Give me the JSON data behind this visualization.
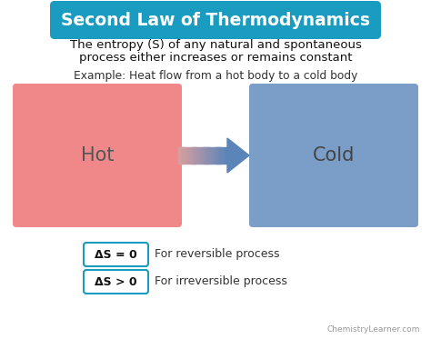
{
  "title": "Second Law of Thermodynamics",
  "title_bg_color": "#1a9bc0",
  "title_text_color": "#ffffff",
  "subtitle_line1": "The entropy (S) of any natural and spontaneous",
  "subtitle_line2": "process either increases or remains constant",
  "example_text": "Example: Heat flow from a hot body to a cold body",
  "hot_label": "Hot",
  "cold_label": "Cold",
  "hot_color": "#f0888a",
  "cold_color": "#7b9ec8",
  "arrow_color_start": "#d9a0a0",
  "arrow_color_end": "#5b85b8",
  "eq1_label": "ΔS = 0",
  "eq1_desc": "For reversible process",
  "eq2_label": "ΔS > 0",
  "eq2_desc": "For irreversible process",
  "eq_box_color": "#ffffff",
  "eq_box_edge": "#1a9bc0",
  "bg_color": "#ffffff",
  "watermark": "ChemistryLearner.com",
  "subtitle_color": "#111111",
  "example_color": "#333333",
  "hot_text_color": "#555555",
  "cold_text_color": "#444444"
}
